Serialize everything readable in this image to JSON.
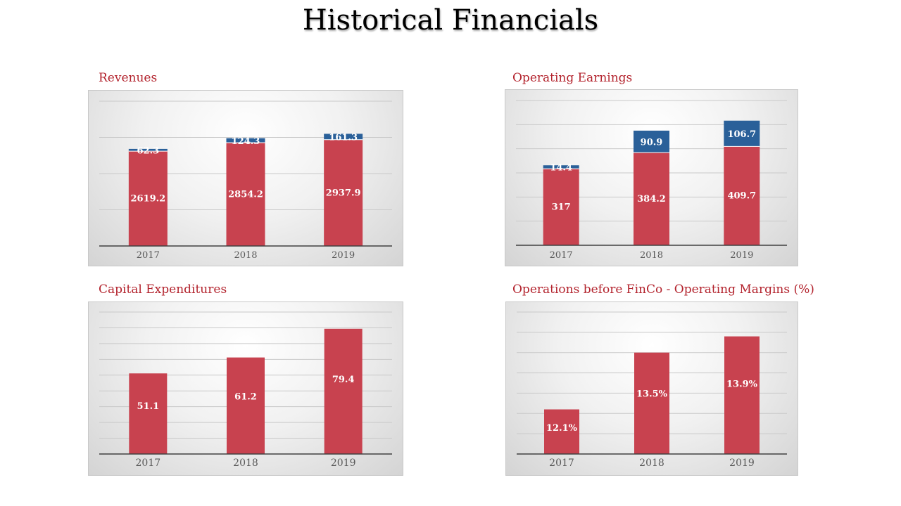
{
  "page": {
    "title": "Historical Financials"
  },
  "chart_data": [
    {
      "id": "revenues",
      "type": "bar",
      "stacked": true,
      "title": "Revenues",
      "categories": [
        "2017",
        "2018",
        "2019"
      ],
      "series": [
        {
          "values": [
            2619.2,
            2854.2,
            2937.9
          ],
          "color": "#c8424f"
        },
        {
          "values": [
            62.3,
            124.3,
            161.3
          ],
          "color": "#2a6099"
        }
      ],
      "ylim": [
        0,
        4000
      ],
      "grid": true,
      "grid_step": 1000
    },
    {
      "id": "operating-earnings",
      "type": "bar",
      "stacked": true,
      "title": "Operating Earnings",
      "categories": [
        "2017",
        "2018",
        "2019"
      ],
      "series": [
        {
          "values": [
            317,
            384.2,
            409.7
          ],
          "color": "#c8424f"
        },
        {
          "values": [
            14.4,
            90.9,
            106.7
          ],
          "color": "#2a6099"
        }
      ],
      "ylim": [
        0,
        600
      ],
      "grid": true,
      "grid_step": 100
    },
    {
      "id": "capital-expenditures",
      "type": "bar",
      "stacked": false,
      "title": "Capital Expenditures",
      "categories": [
        "2017",
        "2018",
        "2019"
      ],
      "series": [
        {
          "values": [
            51.1,
            61.2,
            79.4
          ],
          "color": "#c8424f"
        }
      ],
      "ylim": [
        0,
        90
      ],
      "grid": true,
      "grid_step": 10
    },
    {
      "id": "operating-margins",
      "type": "bar",
      "stacked": false,
      "title": "Operations before FinCo -  Operating Margins (%)",
      "categories": [
        "2017",
        "2018",
        "2019"
      ],
      "series": [
        {
          "values": [
            12.1,
            13.5,
            13.9
          ],
          "labels": [
            "12.1%",
            "13.5%",
            "13.9%"
          ],
          "color": "#c8424f"
        }
      ],
      "ylim": [
        11,
        14.5
      ],
      "grid": true,
      "grid_step": 0.5
    }
  ]
}
